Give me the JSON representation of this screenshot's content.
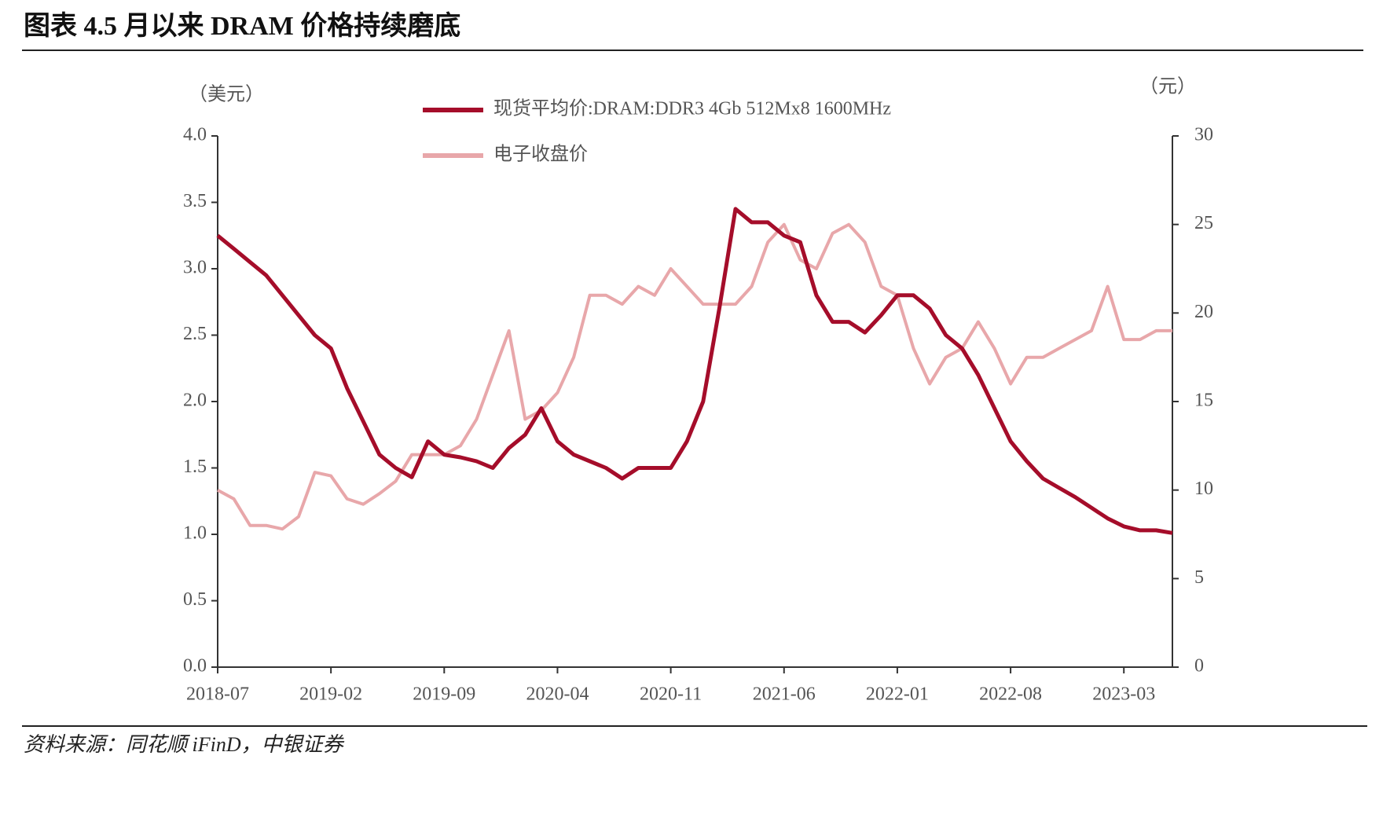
{
  "header": {
    "title": "图表 4.5 月以来 DRAM 价格持续磨底"
  },
  "chart_data": {
    "type": "line",
    "y_unit": "（美元）",
    "y2_unit": "（元）",
    "x": [
      "2018-07",
      "2018-08",
      "2018-09",
      "2018-10",
      "2018-11",
      "2018-12",
      "2019-01",
      "2019-02",
      "2019-03",
      "2019-04",
      "2019-05",
      "2019-06",
      "2019-07",
      "2019-08",
      "2019-09",
      "2019-10",
      "2019-11",
      "2019-12",
      "2020-01",
      "2020-02",
      "2020-03",
      "2020-04",
      "2020-05",
      "2020-06",
      "2020-07",
      "2020-08",
      "2020-09",
      "2020-10",
      "2020-11",
      "2020-12",
      "2021-01",
      "2021-02",
      "2021-03",
      "2021-04",
      "2021-05",
      "2021-06",
      "2021-07",
      "2021-08",
      "2021-09",
      "2021-10",
      "2021-11",
      "2021-12",
      "2022-01",
      "2022-02",
      "2022-03",
      "2022-04",
      "2022-05",
      "2022-06",
      "2022-07",
      "2022-08",
      "2022-09",
      "2022-10",
      "2022-11",
      "2022-12",
      "2023-01",
      "2023-02",
      "2023-03",
      "2023-04",
      "2023-05",
      "2023-06"
    ],
    "xticks": [
      "2018-07",
      "2019-02",
      "2019-09",
      "2020-04",
      "2020-11",
      "2021-06",
      "2022-01",
      "2022-08",
      "2023-03"
    ],
    "series": [
      {
        "name": "现货平均价:DRAM:DDR3 4Gb 512Mx8 1600MHz",
        "color": "#a50d2a",
        "axis": "y",
        "values": [
          3.25,
          3.15,
          3.05,
          2.95,
          2.8,
          2.65,
          2.5,
          2.4,
          2.1,
          1.85,
          1.6,
          1.5,
          1.43,
          1.7,
          1.6,
          1.58,
          1.55,
          1.5,
          1.65,
          1.75,
          1.95,
          1.7,
          1.6,
          1.55,
          1.5,
          1.42,
          1.5,
          1.5,
          1.5,
          1.7,
          2.0,
          2.7,
          3.45,
          3.35,
          3.35,
          3.25,
          3.2,
          2.8,
          2.6,
          2.6,
          2.52,
          2.65,
          2.8,
          2.8,
          2.7,
          2.5,
          2.4,
          2.2,
          1.95,
          1.7,
          1.55,
          1.42,
          1.35,
          1.28,
          1.2,
          1.12,
          1.06,
          1.03,
          1.03,
          1.01
        ]
      },
      {
        "name": "电子收盘价",
        "color": "#e8a7aa",
        "axis": "y2",
        "values": [
          10,
          9.5,
          8,
          8,
          7.8,
          8.5,
          11,
          10.8,
          9.5,
          9.2,
          9.8,
          10.5,
          12,
          12,
          12,
          12.5,
          14,
          16.5,
          19,
          14,
          14.5,
          15.5,
          17.5,
          21,
          21,
          20.5,
          21.5,
          21,
          22.5,
          21.5,
          20.5,
          20.5,
          20.5,
          21.5,
          24,
          25,
          23,
          22.5,
          24.5,
          25,
          24,
          21.5,
          21,
          18,
          16,
          17.5,
          18,
          19.5,
          18,
          16,
          17.5,
          17.5,
          18,
          18.5,
          19,
          21.5,
          18.5,
          18.5,
          19,
          19
        ]
      }
    ],
    "ylim": [
      0,
      4
    ],
    "yticks": [
      {
        "value": 0,
        "label": "0.0"
      },
      {
        "value": 0.5,
        "label": "0.5"
      },
      {
        "value": 1,
        "label": "1.0"
      },
      {
        "value": 1.5,
        "label": "1.5"
      },
      {
        "value": 2,
        "label": "2.0"
      },
      {
        "value": 2.5,
        "label": "2.5"
      },
      {
        "value": 3,
        "label": "3.0"
      },
      {
        "value": 3.5,
        "label": "3.5"
      },
      {
        "value": 4,
        "label": "4.0"
      }
    ],
    "y2lim": [
      0,
      30
    ],
    "y2ticks": [
      0,
      5,
      10,
      15,
      20,
      25,
      30
    ]
  },
  "footer": {
    "source": "资料来源：同花顺 iFinD，中银证券"
  }
}
